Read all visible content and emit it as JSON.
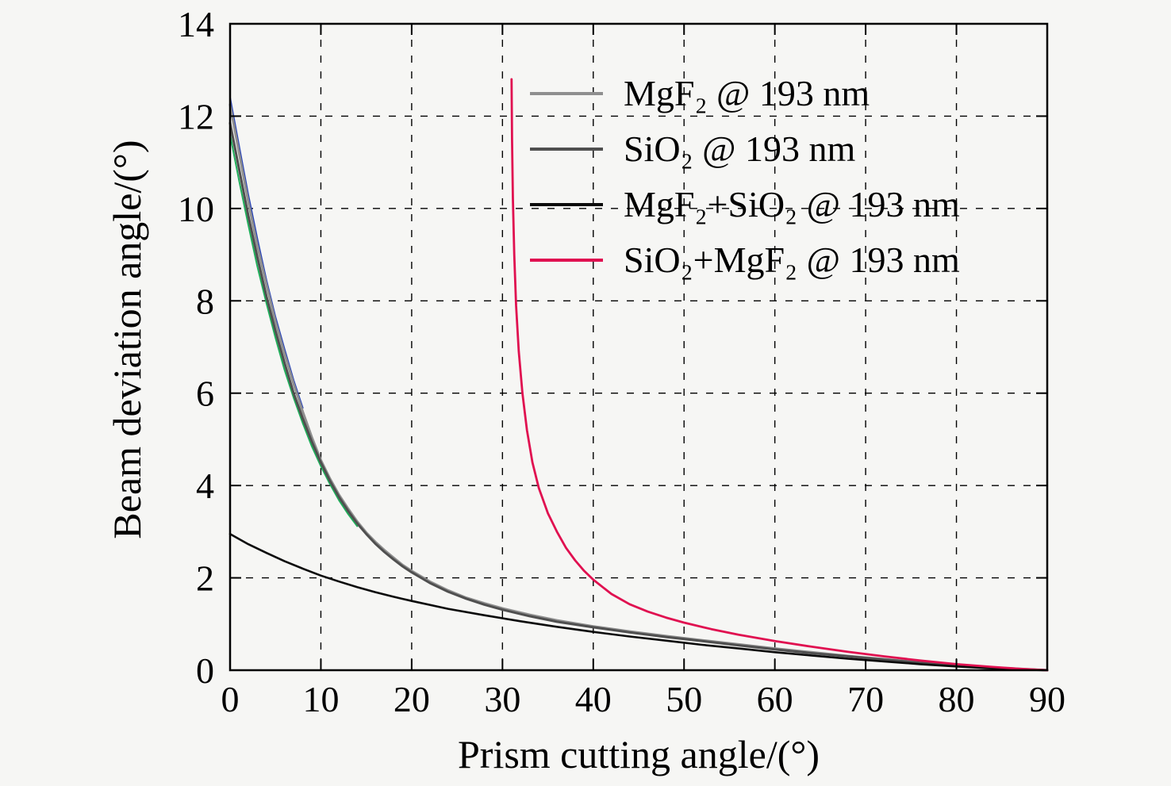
{
  "figure": {
    "background": "#f6f6f4"
  },
  "chart_data": {
    "type": "line",
    "title": "",
    "xlabel": "Prism cutting angle/(°)",
    "ylabel": "Beam deviation angle/(°)",
    "xlim": [
      0,
      90
    ],
    "ylim": [
      0,
      14
    ],
    "xticks": [
      0,
      10,
      20,
      30,
      40,
      50,
      60,
      70,
      80,
      90
    ],
    "yticks": [
      0,
      2,
      4,
      6,
      8,
      10,
      12,
      14
    ],
    "grid": "dashed",
    "legend_position": "top-right-inside",
    "frame_color": "#000000",
    "series": [
      {
        "name": "MgF₂ @ 193 nm",
        "color": "#8f8f8f",
        "width": 3,
        "points": [
          [
            0,
            12.25
          ],
          [
            1,
            11.2
          ],
          [
            2,
            10.15
          ],
          [
            3,
            9.2
          ],
          [
            4,
            8.35
          ],
          [
            5,
            7.55
          ],
          [
            6,
            6.85
          ],
          [
            7,
            6.2
          ],
          [
            8,
            5.6
          ],
          [
            9,
            5.05
          ],
          [
            10,
            4.55
          ],
          [
            11,
            4.15
          ],
          [
            12,
            3.8
          ],
          [
            13,
            3.5
          ],
          [
            14,
            3.22
          ],
          [
            15,
            2.98
          ],
          [
            16,
            2.78
          ],
          [
            17,
            2.6
          ],
          [
            18,
            2.44
          ],
          [
            19,
            2.28
          ],
          [
            20,
            2.15
          ],
          [
            22,
            1.92
          ],
          [
            24,
            1.73
          ],
          [
            26,
            1.57
          ],
          [
            28,
            1.45
          ],
          [
            30,
            1.34
          ],
          [
            33,
            1.2
          ],
          [
            36,
            1.08
          ],
          [
            40,
            0.95
          ],
          [
            44,
            0.84
          ],
          [
            48,
            0.74
          ],
          [
            52,
            0.65
          ],
          [
            56,
            0.56
          ],
          [
            60,
            0.47
          ],
          [
            64,
            0.39
          ],
          [
            68,
            0.31
          ],
          [
            72,
            0.24
          ],
          [
            76,
            0.17
          ],
          [
            80,
            0.11
          ],
          [
            84,
            0.06
          ],
          [
            87,
            0.03
          ],
          [
            90,
            0.0
          ]
        ]
      },
      {
        "name": "SiO₂ @ 193 nm",
        "color": "#4f4f4f",
        "width": 3,
        "points": [
          [
            0,
            11.85
          ],
          [
            1,
            10.85
          ],
          [
            2,
            9.85
          ],
          [
            3,
            8.95
          ],
          [
            4,
            8.1
          ],
          [
            5,
            7.35
          ],
          [
            6,
            6.65
          ],
          [
            7,
            6.0
          ],
          [
            8,
            5.45
          ],
          [
            9,
            4.95
          ],
          [
            10,
            4.5
          ],
          [
            11,
            4.1
          ],
          [
            12,
            3.75
          ],
          [
            13,
            3.45
          ],
          [
            14,
            3.18
          ],
          [
            15,
            2.95
          ],
          [
            16,
            2.74
          ],
          [
            17,
            2.56
          ],
          [
            18,
            2.4
          ],
          [
            19,
            2.25
          ],
          [
            20,
            2.12
          ],
          [
            22,
            1.89
          ],
          [
            24,
            1.7
          ],
          [
            26,
            1.55
          ],
          [
            28,
            1.42
          ],
          [
            30,
            1.31
          ],
          [
            33,
            1.17
          ],
          [
            36,
            1.05
          ],
          [
            40,
            0.93
          ],
          [
            44,
            0.82
          ],
          [
            48,
            0.72
          ],
          [
            52,
            0.63
          ],
          [
            56,
            0.54
          ],
          [
            60,
            0.45
          ],
          [
            64,
            0.37
          ],
          [
            68,
            0.3
          ],
          [
            72,
            0.23
          ],
          [
            76,
            0.16
          ],
          [
            80,
            0.1
          ],
          [
            84,
            0.05
          ],
          [
            87,
            0.02
          ],
          [
            90,
            0.0
          ]
        ]
      },
      {
        "name": "MgF₂+SiO₂ @ 193 nm",
        "color": "#0a0a0a",
        "width": 2.6,
        "points": [
          [
            0,
            2.95
          ],
          [
            2,
            2.73
          ],
          [
            4,
            2.54
          ],
          [
            6,
            2.36
          ],
          [
            8,
            2.2
          ],
          [
            10,
            2.05
          ],
          [
            12,
            1.92
          ],
          [
            14,
            1.8
          ],
          [
            16,
            1.69
          ],
          [
            18,
            1.59
          ],
          [
            20,
            1.5
          ],
          [
            24,
            1.33
          ],
          [
            28,
            1.19
          ],
          [
            32,
            1.06
          ],
          [
            36,
            0.94
          ],
          [
            40,
            0.83
          ],
          [
            44,
            0.73
          ],
          [
            48,
            0.64
          ],
          [
            52,
            0.55
          ],
          [
            56,
            0.47
          ],
          [
            60,
            0.39
          ],
          [
            64,
            0.32
          ],
          [
            68,
            0.25
          ],
          [
            72,
            0.19
          ],
          [
            76,
            0.13
          ],
          [
            80,
            0.08
          ],
          [
            84,
            0.04
          ],
          [
            90,
            0.0
          ]
        ]
      },
      {
        "name": "SiO₂+MgF₂ @ 193 nm",
        "color": "#e01050",
        "width": 2.8,
        "points": [
          [
            31,
            12.8
          ],
          [
            31.05,
            11.5
          ],
          [
            31.15,
            10.2
          ],
          [
            31.3,
            9.0
          ],
          [
            31.5,
            7.9
          ],
          [
            31.8,
            6.9
          ],
          [
            32.2,
            6.0
          ],
          [
            32.7,
            5.2
          ],
          [
            33.3,
            4.5
          ],
          [
            34,
            3.95
          ],
          [
            35,
            3.4
          ],
          [
            36,
            3.0
          ],
          [
            37,
            2.65
          ],
          [
            38,
            2.38
          ],
          [
            39,
            2.15
          ],
          [
            40,
            1.96
          ],
          [
            42,
            1.65
          ],
          [
            44,
            1.43
          ],
          [
            46,
            1.27
          ],
          [
            48,
            1.14
          ],
          [
            50,
            1.03
          ],
          [
            53,
            0.89
          ],
          [
            56,
            0.77
          ],
          [
            60,
            0.63
          ],
          [
            64,
            0.51
          ],
          [
            68,
            0.4
          ],
          [
            72,
            0.3
          ],
          [
            76,
            0.21
          ],
          [
            80,
            0.13
          ],
          [
            84,
            0.07
          ],
          [
            87,
            0.03
          ],
          [
            90,
            0.0
          ]
        ]
      }
    ],
    "auxiliary_overlap_traces": [
      {
        "name": "blue-overlap-trace",
        "color": "#2743b8",
        "width": 2,
        "points": [
          [
            0,
            12.4
          ],
          [
            1,
            11.35
          ],
          [
            2,
            10.3
          ],
          [
            3,
            9.35
          ],
          [
            4,
            8.45
          ],
          [
            5,
            7.65
          ],
          [
            6,
            6.95
          ],
          [
            7,
            6.28
          ],
          [
            8,
            5.68
          ]
        ]
      },
      {
        "name": "green-overlap-trace",
        "color": "#1fae5a",
        "width": 2,
        "points": [
          [
            0,
            11.6
          ],
          [
            1,
            10.6
          ],
          [
            2,
            9.65
          ],
          [
            3,
            8.75
          ],
          [
            4,
            7.95
          ],
          [
            5,
            7.2
          ],
          [
            6,
            6.5
          ],
          [
            7,
            5.9
          ],
          [
            8,
            5.35
          ],
          [
            9,
            4.85
          ],
          [
            10,
            4.42
          ],
          [
            11,
            4.03
          ],
          [
            12,
            3.68
          ],
          [
            13,
            3.38
          ],
          [
            14,
            3.12
          ]
        ]
      }
    ]
  }
}
